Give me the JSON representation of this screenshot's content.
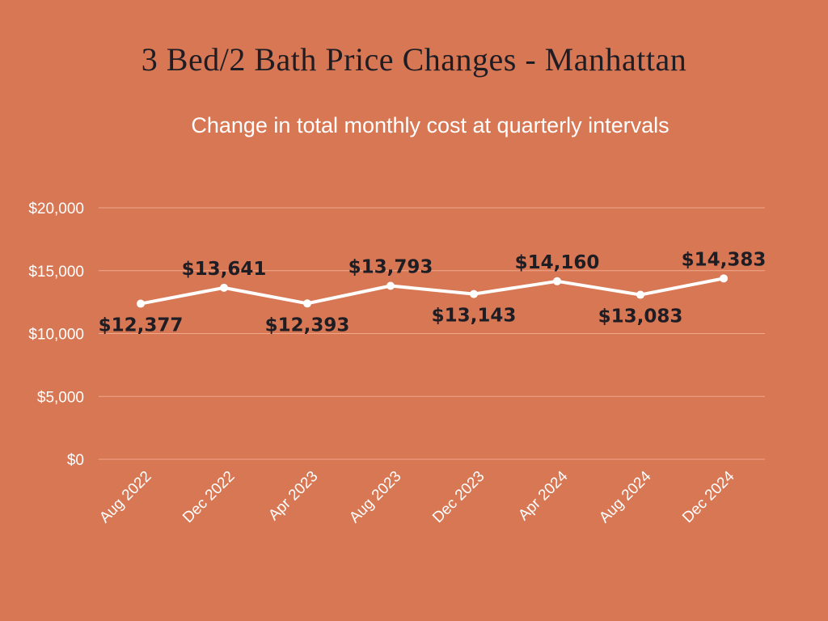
{
  "chart_data": {
    "type": "line",
    "title": "3 Bed/2 Bath Price Changes - Manhattan",
    "subtitle": "Change in total monthly cost at quarterly intervals",
    "xlabel": "",
    "ylabel": "",
    "categories": [
      "Aug 2022",
      "Dec 2022",
      "Apr 2023",
      "Aug 2023",
      "Dec 2023",
      "Apr 2024",
      "Aug 2024",
      "Dec 2024"
    ],
    "series": [
      {
        "values": [
          12377,
          13641,
          12393,
          13793,
          13143,
          14160,
          13083,
          14383
        ]
      }
    ],
    "data_labels": [
      "$12,377",
      "$13,641",
      "$12,393",
      "$13,793",
      "$13,143",
      "$14,160",
      "$13,083",
      "$14,383"
    ],
    "yticks": [
      0,
      5000,
      10000,
      15000,
      20000
    ],
    "ytick_labels": [
      "$0",
      "$5,000",
      "$10,000",
      "$15,000",
      "$20,000"
    ],
    "ylim": [
      0,
      20000
    ],
    "grid": true,
    "legend": "none",
    "colors": {
      "background": "#D87754",
      "line": "#FFFFFF",
      "grid": "#EFA88C",
      "title": "#1F1D24",
      "data_label": "#1F1D24",
      "tick": "#FFFFFF"
    }
  }
}
